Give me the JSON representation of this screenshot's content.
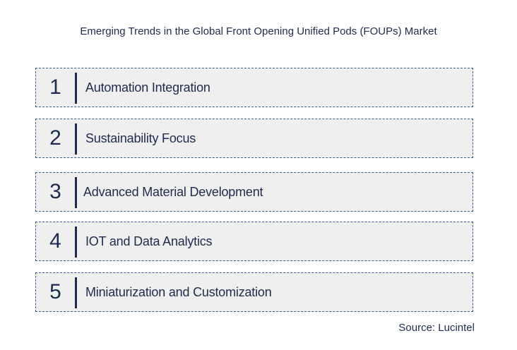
{
  "title": "Emerging Trends in the Global Front Opening Unified Pods (FOUPs) Market",
  "items": [
    {
      "number": "1",
      "label": "Automation Integration"
    },
    {
      "number": "2",
      "label": "Sustainability Focus"
    },
    {
      "number": "3",
      "label": "Advanced Material Development"
    },
    {
      "number": "4",
      "label": "IOT and Data Analytics"
    },
    {
      "number": "5",
      "label": "Miniaturization and Customization"
    }
  ],
  "source": "Source: Lucintel",
  "colors": {
    "text": "#1f2b4d",
    "row_bg": "#efefef",
    "border": "#3c5a8c"
  }
}
